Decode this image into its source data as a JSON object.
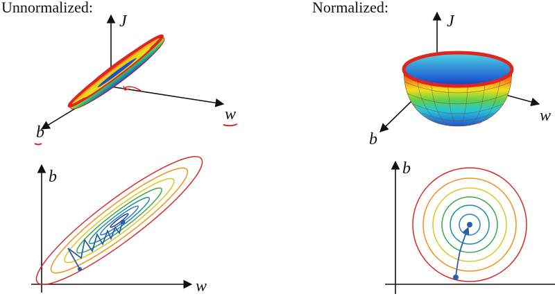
{
  "panels": [
    {
      "title": "Unnormalized:",
      "surface_axes": {
        "vertical": "J",
        "right": "w",
        "left": "b"
      },
      "contour_axes": {
        "vertical": "b",
        "horizontal": "w"
      }
    },
    {
      "title": "Normalized:",
      "surface_axes": {
        "vertical": "J",
        "right": "w",
        "left": "b"
      },
      "contour_axes": {
        "vertical": "b"
      }
    }
  ]
}
